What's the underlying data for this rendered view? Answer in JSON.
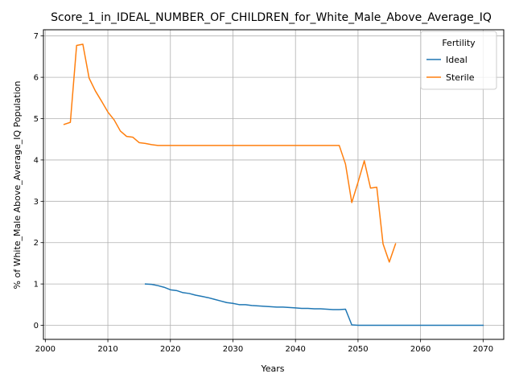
{
  "chart_data": {
    "type": "line",
    "title": "Score_1_in_IDEAL_NUMBER_OF_CHILDREN_for_White_Male_Above_Average_IQ",
    "xlabel": "Years",
    "ylabel": "% of White_Male Above_Average_IQ Population",
    "xlim": [
      1999.7,
      2073.3
    ],
    "ylim": [
      -0.34,
      7.15
    ],
    "xticks": [
      2000,
      2010,
      2020,
      2030,
      2040,
      2050,
      2060,
      2070
    ],
    "yticks": [
      0,
      1,
      2,
      3,
      4,
      5,
      6,
      7
    ],
    "grid": true,
    "legend": {
      "title": "Fertility",
      "placement": "top-right"
    },
    "series": [
      {
        "name": "Ideal",
        "color": "#1f77b4",
        "x": [
          2016,
          2017,
          2018,
          2019,
          2020,
          2021,
          2022,
          2023,
          2024,
          2025,
          2026,
          2027,
          2028,
          2029,
          2030,
          2031,
          2032,
          2033,
          2034,
          2035,
          2036,
          2037,
          2038,
          2039,
          2040,
          2041,
          2042,
          2043,
          2044,
          2045,
          2046,
          2047,
          2048,
          2049,
          2050,
          2055,
          2060,
          2065,
          2070
        ],
        "y": [
          1.0,
          0.99,
          0.96,
          0.92,
          0.86,
          0.84,
          0.79,
          0.77,
          0.73,
          0.7,
          0.67,
          0.63,
          0.59,
          0.55,
          0.53,
          0.5,
          0.5,
          0.48,
          0.47,
          0.46,
          0.45,
          0.44,
          0.44,
          0.43,
          0.42,
          0.41,
          0.41,
          0.4,
          0.4,
          0.39,
          0.38,
          0.38,
          0.39,
          0.01,
          0.0,
          0.0,
          0.0,
          0.0,
          0.0
        ]
      },
      {
        "name": "Sterile",
        "color": "#ff7f0e",
        "x": [
          2003,
          2004,
          2005,
          2006,
          2007,
          2008,
          2009,
          2010,
          2011,
          2012,
          2013,
          2014,
          2015,
          2016,
          2017,
          2018,
          2019,
          2020,
          2025,
          2030,
          2035,
          2040,
          2045,
          2047,
          2048,
          2049,
          2050,
          2051,
          2052,
          2053,
          2054,
          2055,
          2056
        ],
        "y": [
          4.86,
          4.91,
          6.77,
          6.8,
          5.98,
          5.67,
          5.42,
          5.16,
          4.97,
          4.7,
          4.57,
          4.55,
          4.42,
          4.4,
          4.37,
          4.35,
          4.35,
          4.35,
          4.35,
          4.35,
          4.35,
          4.35,
          4.35,
          4.35,
          3.9,
          2.97,
          3.46,
          3.98,
          3.32,
          3.34,
          1.97,
          1.53,
          1.97
        ]
      }
    ]
  }
}
